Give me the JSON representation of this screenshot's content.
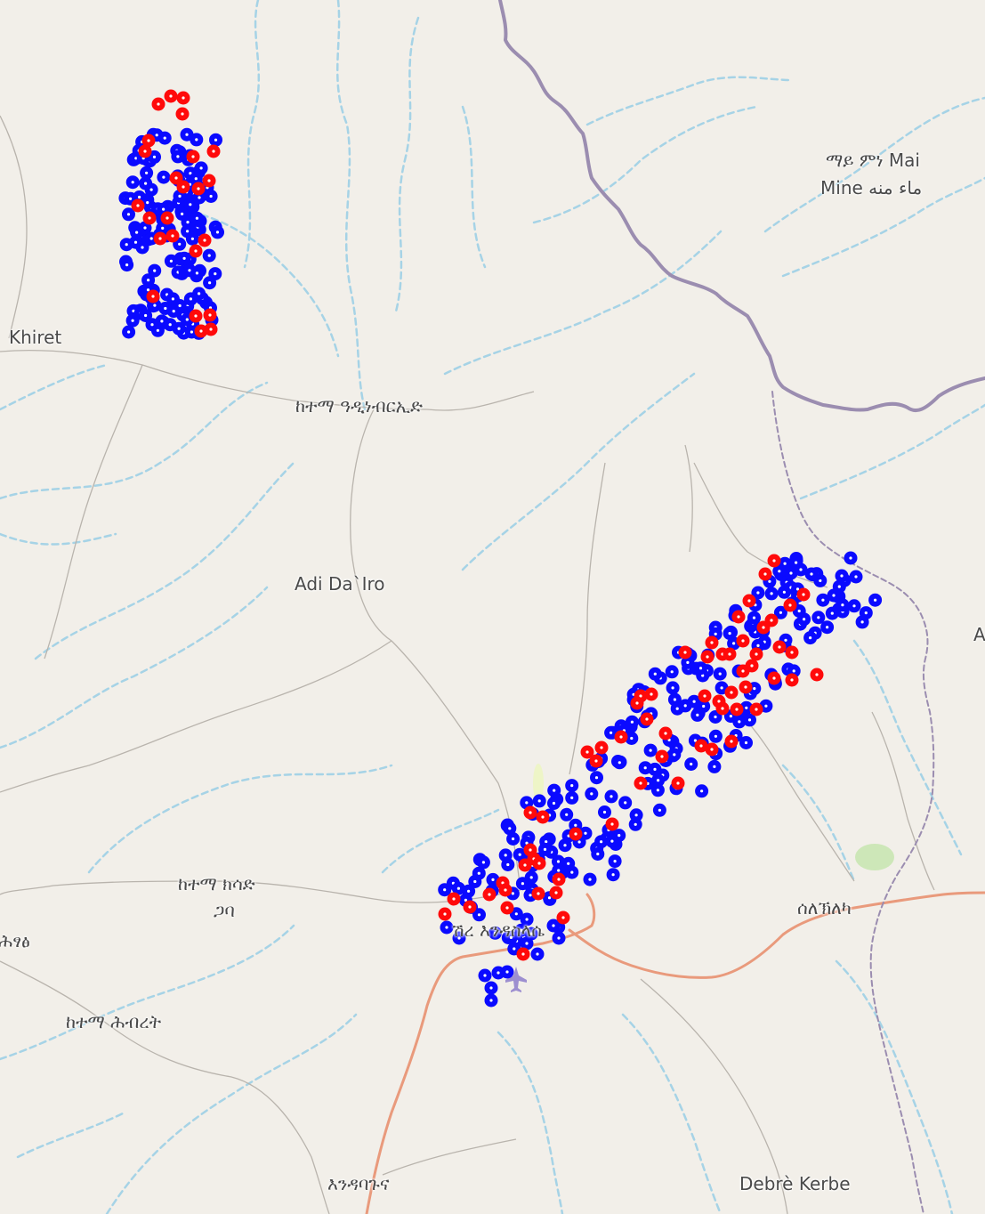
{
  "map": {
    "place_labels": {
      "khiret": "Khiret",
      "ketema_adi_nebried": "ከተማ ዓዲነብርኢድ",
      "adi_daero": "Adi Da`Iro",
      "mai_mine_line1": "ማይ ምነ Mai",
      "mai_mine_line2": "Mine ماء منه",
      "ketema_kisad_line1": "ከተማ ክሳድ",
      "ketema_kisad_line2": "ጋባ",
      "hitsats_partial": "ሕፃፅ",
      "ketema_hibret": "ከተማ ሕብረት",
      "shire": "ሽረ እንዳስላሴ",
      "selekhleka": "ሰለኽለካ",
      "endabaguna": "እንዳባጉና",
      "debre_kerbe": "Debrè Kerbe",
      "edge_a": "A"
    },
    "colors": {
      "background": "#f2efe9",
      "river": "#a6d3e6",
      "road": "#b9b4ad",
      "main_road": "#e99a7c",
      "border": "#9b8db0",
      "marker_blue": "#0a0aff",
      "marker_red": "#ff0a0a"
    },
    "marker_series": [
      "blue",
      "red"
    ]
  }
}
